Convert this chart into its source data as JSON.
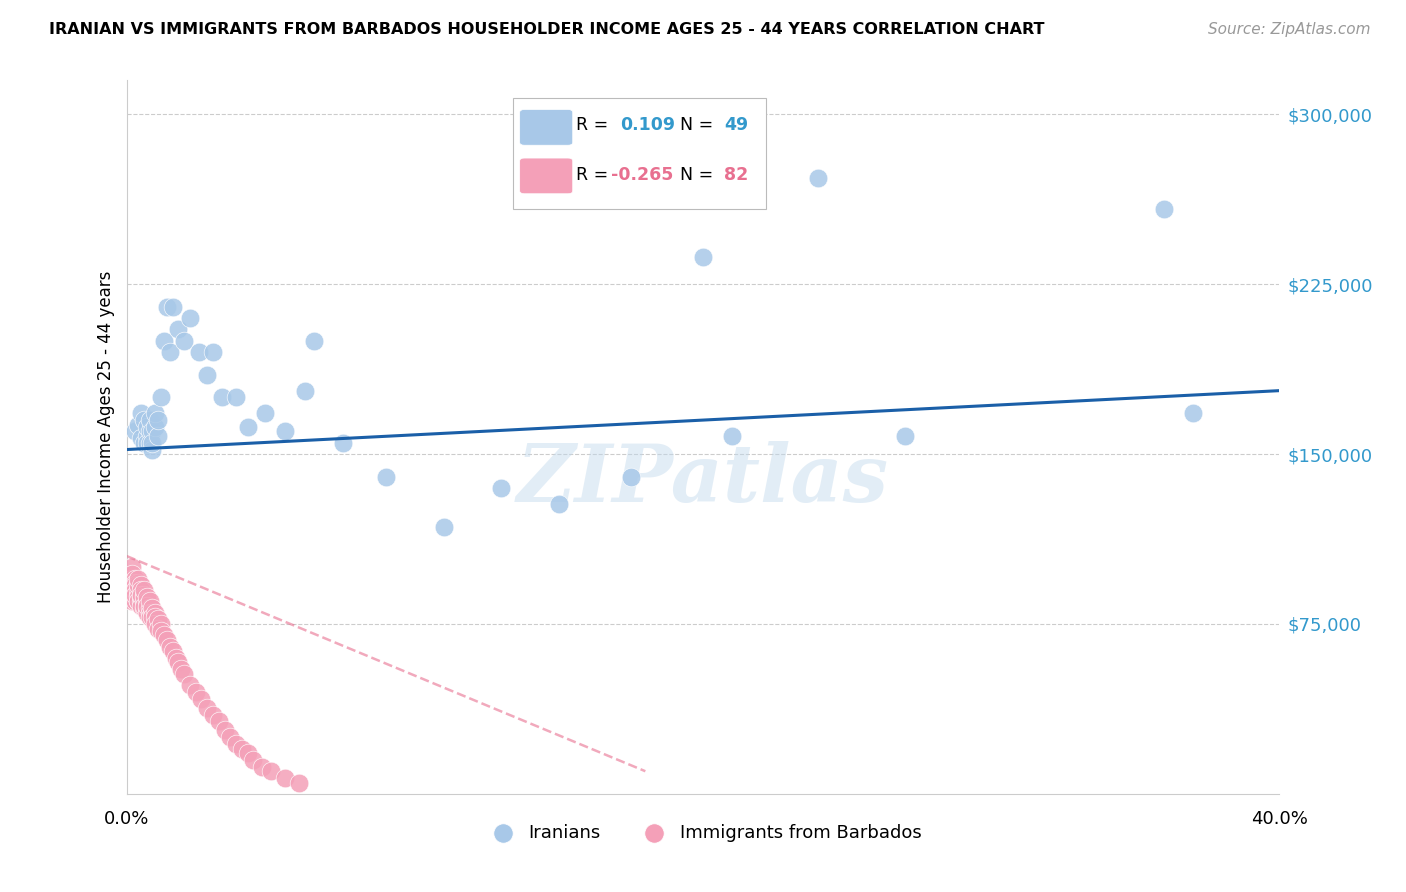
{
  "title": "IRANIAN VS IMMIGRANTS FROM BARBADOS HOUSEHOLDER INCOME AGES 25 - 44 YEARS CORRELATION CHART",
  "source": "Source: ZipAtlas.com",
  "ylabel": "Householder Income Ages 25 - 44 years",
  "xlim": [
    0.0,
    0.4
  ],
  "ylim": [
    0,
    315000
  ],
  "yticks": [
    0,
    75000,
    150000,
    225000,
    300000
  ],
  "ytick_labels": [
    "",
    "$75,000",
    "$150,000",
    "$225,000",
    "$300,000"
  ],
  "xtick_positions": [
    0.0,
    0.1,
    0.2,
    0.3,
    0.4
  ],
  "xtick_labels": [
    "0.0%",
    "",
    "",
    "",
    "40.0%"
  ],
  "legend1_r": "0.109",
  "legend1_n": "49",
  "legend2_r": "-0.265",
  "legend2_n": "82",
  "blue_color": "#a8c8e8",
  "pink_color": "#f4a0b8",
  "blue_line_color": "#1a5fa8",
  "pink_line_color": "#e87090",
  "watermark": "ZIPatlas",
  "iranians_x": [
    0.003,
    0.004,
    0.005,
    0.005,
    0.006,
    0.006,
    0.007,
    0.007,
    0.007,
    0.008,
    0.008,
    0.008,
    0.009,
    0.009,
    0.009,
    0.01,
    0.01,
    0.011,
    0.011,
    0.012,
    0.013,
    0.014,
    0.015,
    0.016,
    0.018,
    0.02,
    0.022,
    0.025,
    0.028,
    0.03,
    0.033,
    0.038,
    0.042,
    0.048,
    0.055,
    0.062,
    0.065,
    0.075,
    0.09,
    0.11,
    0.13,
    0.15,
    0.175,
    0.2,
    0.21,
    0.24,
    0.27,
    0.36,
    0.37
  ],
  "iranians_y": [
    160000,
    163000,
    157000,
    168000,
    155000,
    165000,
    158000,
    162000,
    155000,
    160000,
    165000,
    155000,
    152000,
    160000,
    155000,
    162000,
    168000,
    158000,
    165000,
    175000,
    200000,
    215000,
    195000,
    215000,
    205000,
    200000,
    210000,
    195000,
    185000,
    195000,
    175000,
    175000,
    162000,
    168000,
    160000,
    178000,
    200000,
    155000,
    140000,
    118000,
    135000,
    128000,
    140000,
    237000,
    158000,
    272000,
    158000,
    258000,
    168000
  ],
  "barbados_x": [
    0.001,
    0.001,
    0.001,
    0.002,
    0.002,
    0.002,
    0.002,
    0.002,
    0.002,
    0.003,
    0.003,
    0.003,
    0.003,
    0.003,
    0.003,
    0.003,
    0.003,
    0.003,
    0.004,
    0.004,
    0.004,
    0.004,
    0.004,
    0.004,
    0.004,
    0.004,
    0.005,
    0.005,
    0.005,
    0.005,
    0.005,
    0.005,
    0.005,
    0.006,
    0.006,
    0.006,
    0.006,
    0.006,
    0.006,
    0.007,
    0.007,
    0.007,
    0.007,
    0.007,
    0.008,
    0.008,
    0.008,
    0.008,
    0.009,
    0.009,
    0.009,
    0.01,
    0.01,
    0.01,
    0.011,
    0.011,
    0.012,
    0.012,
    0.013,
    0.014,
    0.015,
    0.016,
    0.017,
    0.018,
    0.019,
    0.02,
    0.022,
    0.024,
    0.026,
    0.028,
    0.03,
    0.032,
    0.034,
    0.036,
    0.038,
    0.04,
    0.042,
    0.044,
    0.047,
    0.05,
    0.055,
    0.06
  ],
  "barbados_y": [
    95000,
    90000,
    88000,
    100000,
    95000,
    92000,
    88000,
    85000,
    97000,
    95000,
    90000,
    87000,
    93000,
    88000,
    85000,
    92000,
    90000,
    88000,
    93000,
    88000,
    85000,
    90000,
    87000,
    92000,
    95000,
    85000,
    88000,
    92000,
    85000,
    90000,
    87000,
    83000,
    88000,
    85000,
    88000,
    82000,
    87000,
    90000,
    83000,
    85000,
    82000,
    87000,
    80000,
    83000,
    82000,
    85000,
    80000,
    78000,
    80000,
    82000,
    78000,
    80000,
    78000,
    75000,
    77000,
    73000,
    75000,
    72000,
    70000,
    68000,
    65000,
    63000,
    60000,
    58000,
    55000,
    53000,
    48000,
    45000,
    42000,
    38000,
    35000,
    32000,
    28000,
    25000,
    22000,
    20000,
    18000,
    15000,
    12000,
    10000,
    7000,
    5000
  ]
}
